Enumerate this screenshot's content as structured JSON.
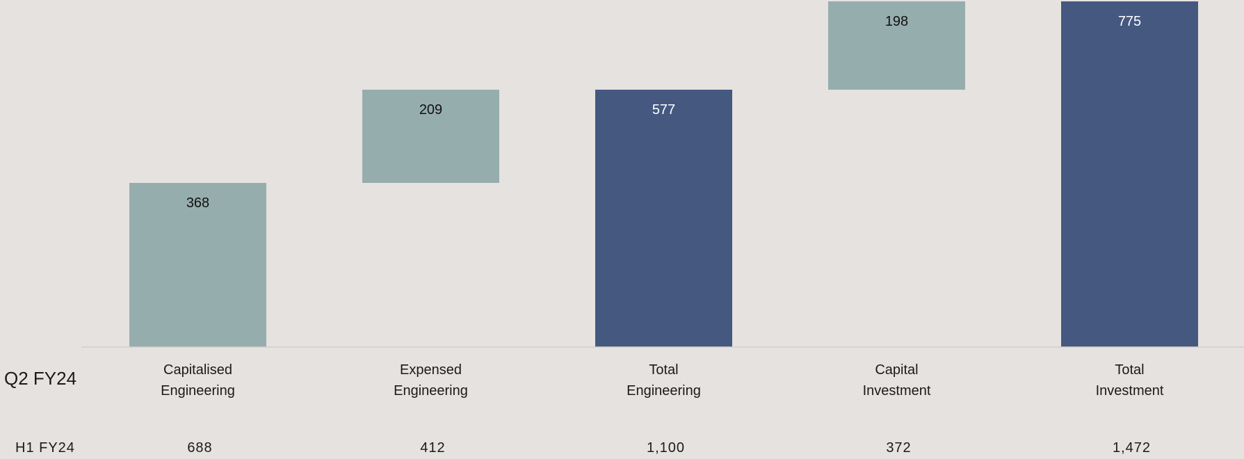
{
  "chart_data": {
    "type": "bar",
    "subtype": "waterfall",
    "row_label": "Q2 FY24",
    "categories": [
      [
        "Capitalised",
        "Engineering"
      ],
      [
        "Expensed",
        "Engineering"
      ],
      [
        "Total",
        "Engineering"
      ],
      [
        "Capital",
        "Investment"
      ],
      [
        "Total",
        "Investment"
      ]
    ],
    "values": [
      368,
      209,
      577,
      198,
      775
    ],
    "bar_kind": [
      "increment",
      "increment",
      "total",
      "increment",
      "total"
    ],
    "data_labels": [
      "368",
      "209",
      "577",
      "198",
      "775"
    ],
    "ylim": [
      0,
      775
    ],
    "secondary_row": {
      "label": "H1 FY24",
      "values": [
        "688",
        "412",
        "1,100",
        "372",
        "1,472"
      ]
    },
    "colors": {
      "increment": "#96adad",
      "total": "#445880",
      "increment_label": "#111111",
      "total_label": "#ffffff",
      "baseline": "#d2cecb"
    },
    "legend": "none",
    "grid": false
  }
}
